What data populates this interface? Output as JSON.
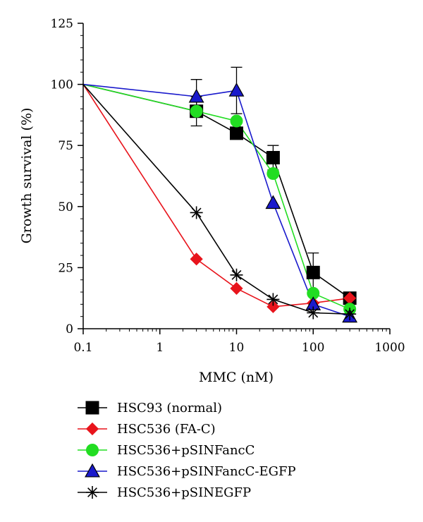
{
  "chart_data": {
    "type": "line",
    "title": "",
    "xlabel": "MMC (nM)",
    "ylabel": "Growth survival (%)",
    "x_scale": "log",
    "xlim": [
      0.1,
      1000
    ],
    "ylim": [
      0,
      125
    ],
    "x_ticks": [
      "0.1",
      "1",
      "10",
      "100",
      "1000"
    ],
    "y_ticks": [
      "0",
      "25",
      "50",
      "75",
      "100",
      "125"
    ],
    "grid": false,
    "legend_position": "bottom",
    "series": [
      {
        "name": "HSC93 (normal)",
        "color": "#000000",
        "marker": "square",
        "points": [
          {
            "x": 0.1,
            "y": 100
          },
          {
            "x": 3,
            "y": 89,
            "err": 6
          },
          {
            "x": 10,
            "y": 80
          },
          {
            "x": 30,
            "y": 70,
            "err": 5
          },
          {
            "x": 100,
            "y": 23,
            "err": 8
          },
          {
            "x": 300,
            "y": 12.5
          }
        ]
      },
      {
        "name": "HSC536 (FA-C)",
        "color": "#e8141c",
        "marker": "diamond",
        "points": [
          {
            "x": 0.1,
            "y": 100
          },
          {
            "x": 3,
            "y": 28.5
          },
          {
            "x": 10,
            "y": 16.5
          },
          {
            "x": 30,
            "y": 9
          },
          {
            "x": 100,
            "y": 10.5
          },
          {
            "x": 300,
            "y": 12.5
          }
        ]
      },
      {
        "name": "HSC536+pSINFancC",
        "color": "#22dd22",
        "marker": "circle",
        "points": [
          {
            "x": 0.1,
            "y": 100
          },
          {
            "x": 3,
            "y": 89
          },
          {
            "x": 10,
            "y": 85
          },
          {
            "x": 30,
            "y": 63.5
          },
          {
            "x": 100,
            "y": 14.5
          },
          {
            "x": 300,
            "y": 8
          }
        ]
      },
      {
        "name": "HSC536+pSINFancC-EGFP",
        "color": "#1a1acc",
        "marker": "triangle",
        "points": [
          {
            "x": 0.1,
            "y": 100
          },
          {
            "x": 3,
            "y": 95,
            "err": 7
          },
          {
            "x": 10,
            "y": 97.5,
            "err": 9.5
          },
          {
            "x": 30,
            "y": 51.5
          },
          {
            "x": 100,
            "y": 10
          },
          {
            "x": 300,
            "y": 5
          }
        ]
      },
      {
        "name": "HSC536+pSINEGFP",
        "color": "#000000",
        "marker": "asterisk",
        "points": [
          {
            "x": 0.1,
            "y": 100
          },
          {
            "x": 3,
            "y": 47.5
          },
          {
            "x": 10,
            "y": 22
          },
          {
            "x": 30,
            "y": 12
          },
          {
            "x": 100,
            "y": 6.5
          },
          {
            "x": 300,
            "y": 6
          }
        ]
      }
    ]
  }
}
